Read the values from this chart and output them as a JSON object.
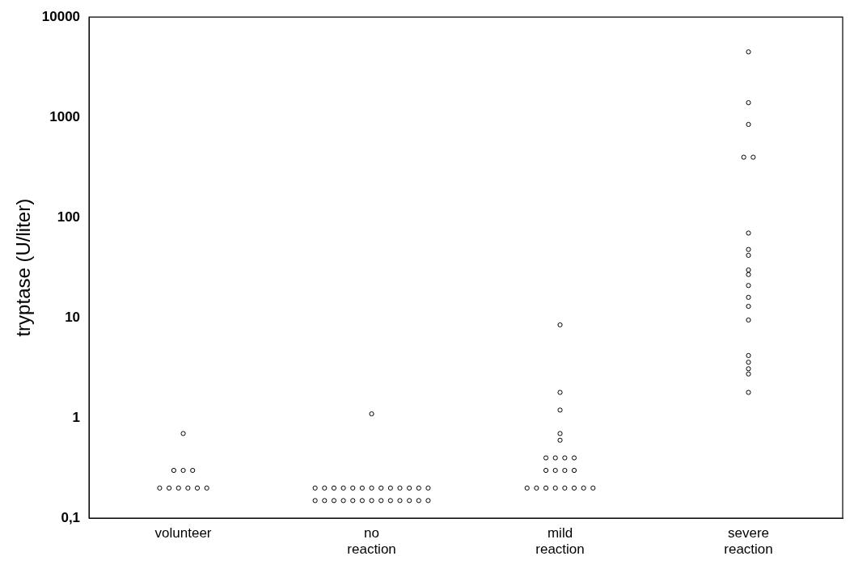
{
  "chart_data": {
    "type": "scatter",
    "ylabel": "tryptase (U/liter)",
    "categories": [
      "volunteer",
      "no reaction",
      "mild reaction",
      "severe reaction"
    ],
    "log": "y",
    "ylim": [
      0.1,
      10000
    ],
    "yticks": [
      {
        "value": 0.1,
        "label": "0,1"
      },
      1,
      10,
      100,
      1000,
      10000
    ],
    "grid": false,
    "legend": false,
    "marker": "circle",
    "series": [
      {
        "color": "#000000",
        "x": [
          "volunteer",
          "volunteer",
          "volunteer",
          "volunteer",
          "volunteer",
          "volunteer",
          "volunteer",
          "volunteer",
          "volunteer",
          "volunteer",
          "no reaction",
          "no reaction",
          "no reaction",
          "no reaction",
          "no reaction",
          "no reaction",
          "no reaction",
          "no reaction",
          "no reaction",
          "no reaction",
          "no reaction",
          "no reaction",
          "no reaction",
          "no reaction",
          "no reaction",
          "no reaction",
          "no reaction",
          "no reaction",
          "no reaction",
          "no reaction",
          "no reaction",
          "no reaction",
          "no reaction",
          "no reaction",
          "no reaction",
          "no reaction",
          "no reaction",
          "mild reaction",
          "mild reaction",
          "mild reaction",
          "mild reaction",
          "mild reaction",
          "mild reaction",
          "mild reaction",
          "mild reaction",
          "mild reaction",
          "mild reaction",
          "mild reaction",
          "mild reaction",
          "mild reaction",
          "mild reaction",
          "mild reaction",
          "mild reaction",
          "mild reaction",
          "mild reaction",
          "mild reaction",
          "mild reaction",
          "mild reaction",
          "severe reaction",
          "severe reaction",
          "severe reaction",
          "severe reaction",
          "severe reaction",
          "severe reaction",
          "severe reaction",
          "severe reaction",
          "severe reaction",
          "severe reaction",
          "severe reaction",
          "severe reaction",
          "severe reaction",
          "severe reaction",
          "severe reaction",
          "severe reaction",
          "severe reaction",
          "severe reaction",
          "severe reaction"
        ],
        "values": [
          0.7,
          0.3,
          0.3,
          0.3,
          0.2,
          0.2,
          0.2,
          0.2,
          0.2,
          0.2,
          1.1,
          0.2,
          0.2,
          0.2,
          0.2,
          0.2,
          0.2,
          0.2,
          0.2,
          0.2,
          0.2,
          0.2,
          0.2,
          0.2,
          0.15,
          0.15,
          0.15,
          0.15,
          0.15,
          0.15,
          0.15,
          0.15,
          0.15,
          0.15,
          0.15,
          0.15,
          0.15,
          8.5,
          1.8,
          1.2,
          0.7,
          0.6,
          0.4,
          0.4,
          0.4,
          0.4,
          0.3,
          0.3,
          0.3,
          0.3,
          0.2,
          0.2,
          0.2,
          0.2,
          0.2,
          0.2,
          0.2,
          0.2,
          4500,
          1400,
          850,
          400,
          400,
          70,
          48,
          42,
          30,
          27,
          21,
          16,
          13,
          9.5,
          4.2,
          3.6,
          3.1,
          2.75,
          1.8
        ]
      }
    ]
  }
}
